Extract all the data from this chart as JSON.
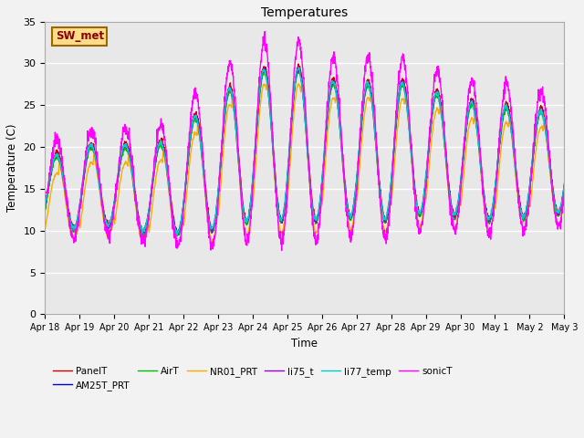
{
  "title": "Temperatures",
  "xlabel": "Time",
  "ylabel": "Temperature (C)",
  "ylim": [
    0,
    35
  ],
  "yticks": [
    0,
    5,
    10,
    15,
    20,
    25,
    30,
    35
  ],
  "x_labels": [
    "Apr 18",
    "Apr 19",
    "Apr 20",
    "Apr 21",
    "Apr 22",
    "Apr 23",
    "Apr 24",
    "Apr 25",
    "Apr 26",
    "Apr 27",
    "Apr 28",
    "Apr 29",
    "Apr 30",
    "May 1",
    "May 2",
    "May 3"
  ],
  "series": {
    "PanelT": {
      "color": "#cc0000",
      "lw": 1.2
    },
    "AM25T_PRT": {
      "color": "#0000cc",
      "lw": 1.2
    },
    "AirT": {
      "color": "#00bb00",
      "lw": 1.2
    },
    "NR01_PRT": {
      "color": "#ffaa00",
      "lw": 1.2
    },
    "li75_t": {
      "color": "#9900cc",
      "lw": 1.2
    },
    "li77_temp": {
      "color": "#00cccc",
      "lw": 1.2
    },
    "sonicT": {
      "color": "#ff00ff",
      "lw": 1.2
    }
  },
  "annotation_text": "SW_met",
  "annotation_box_color": "#ffdd88",
  "annotation_border_color": "#996600",
  "plot_bg_color": "#e8e8e8",
  "fig_bg_color": "#f2f2f2",
  "grid_color": "#ffffff",
  "figsize": [
    6.4,
    4.8
  ],
  "dpi": 100
}
